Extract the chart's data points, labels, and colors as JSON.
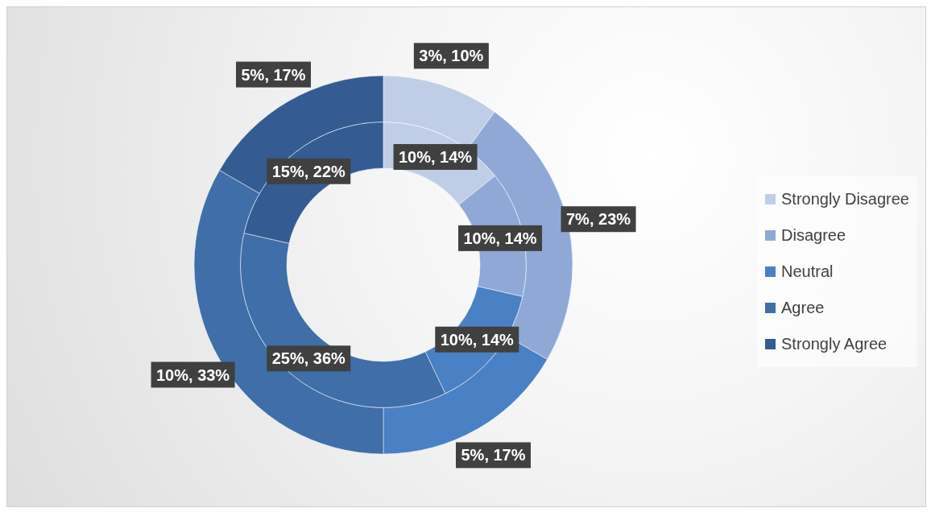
{
  "chart_data": {
    "type": "donut",
    "categories": [
      "Strongly Disagree",
      "Disagree",
      "Neutral",
      "Agree",
      "Strongly Agree"
    ],
    "colors": [
      "#c0cde6",
      "#8fa8d6",
      "#4a80c4",
      "#3f6ea9",
      "#345c93"
    ],
    "series": [
      {
        "values": [
          10,
          10,
          10,
          25,
          15
        ],
        "value_labels": [
          "10%, 14%",
          "10%, 14%",
          "10%, 14%",
          "25%, 36%",
          "15%, 22%"
        ]
      },
      {
        "values": [
          3,
          7,
          5,
          10,
          5
        ],
        "value_labels": [
          "3%, 10%",
          "7%, 23%",
          "5%, 17%",
          "10%, 33%",
          "5%, 17%"
        ]
      }
    ],
    "legend": "right"
  }
}
